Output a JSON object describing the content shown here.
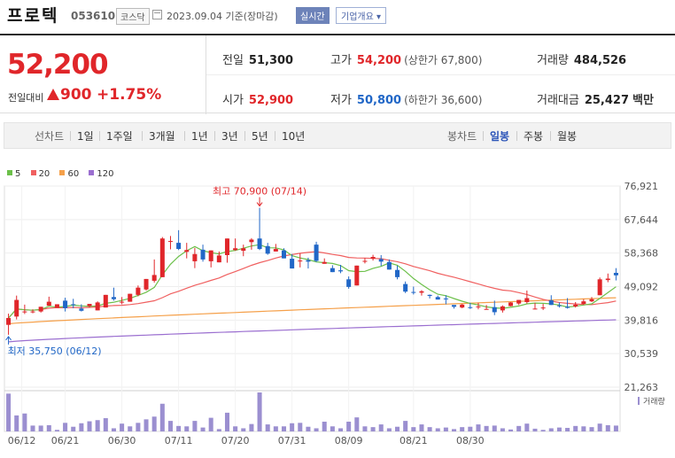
{
  "header": {
    "name": "프로텍",
    "code": "053610",
    "market": "코스닥",
    "date_text": "2023.09.04 기준(장마감)",
    "realtime_label": "실시간",
    "info_label": "기업개요 ▾"
  },
  "quote": {
    "price": "52,200",
    "change_label": "전일대비",
    "change": "900",
    "change_pct": "+1.75%",
    "cells": {
      "prev": {
        "label": "전일",
        "value": "51,300"
      },
      "high": {
        "label": "고가",
        "value": "54,200",
        "sub": "(상한가 67,800)"
      },
      "volume": {
        "label": "거래량",
        "value": "484,526"
      },
      "open": {
        "label": "시가",
        "value": "52,900"
      },
      "low": {
        "label": "저가",
        "value": "50,800",
        "sub": "(하한가 36,600)"
      },
      "amount": {
        "label": "거래대금",
        "value": "25,427",
        "unit": "백만"
      }
    }
  },
  "periods": {
    "label": "선차트",
    "items": [
      "1일",
      "1주일",
      "3개월",
      "1년",
      "3년",
      "5년",
      "10년"
    ]
  },
  "candles_tabs": {
    "label": "봉차트",
    "items": [
      "일봉",
      "주봉",
      "월봉"
    ],
    "selected": "일봉"
  },
  "colors": {
    "up": "#e0262a",
    "down": "#2167c7",
    "ma5": "#6cc04a",
    "ma20": "#f06060",
    "ma60": "#f5a04a",
    "ma120": "#9b6fd0",
    "volume": "#9b8fd0"
  },
  "chart_data": {
    "type": "candlestick",
    "legend": [
      "5",
      "20",
      "60",
      "120"
    ],
    "y_ticks": [
      "76,921",
      "67,644",
      "58,368",
      "49,092",
      "39,816",
      "30,539",
      "21,263"
    ],
    "ylim": [
      21263,
      76921
    ],
    "x_ticks": [
      "06/12",
      "06/21",
      "06/30",
      "07/11",
      "07/20",
      "07/31",
      "08/09",
      "08/21",
      "08/30"
    ],
    "annotations": {
      "high": "최고 70,900 (07/14)",
      "low": "최저 35,750 (06/12)"
    },
    "volume_label": "거래량",
    "ohlc": [
      [
        38500,
        41600,
        35750,
        40400
      ],
      [
        40800,
        46600,
        40000,
        45400
      ],
      [
        42200,
        44100,
        41500,
        42200
      ],
      [
        42200,
        42800,
        41700,
        42200
      ],
      [
        42200,
        43500,
        41900,
        43500
      ],
      [
        43800,
        46300,
        43800,
        44900
      ],
      [
        43200,
        44200,
        43200,
        44200
      ],
      [
        45200,
        46000,
        42200,
        43100
      ],
      [
        44200,
        45700,
        43100,
        44100
      ],
      [
        43000,
        44200,
        42200,
        42400
      ],
      [
        43700,
        44300,
        43300,
        44300
      ],
      [
        42500,
        45000,
        42500,
        44700
      ],
      [
        43300,
        46800,
        43300,
        46800
      ],
      [
        46200,
        48800,
        45200,
        45600
      ],
      [
        44900,
        46200,
        44200,
        44900
      ],
      [
        44900,
        47100,
        44900,
        47100
      ],
      [
        46800,
        49400,
        46400,
        48800
      ],
      [
        48300,
        51200,
        48000,
        51200
      ],
      [
        50700,
        56600,
        50200,
        52300
      ],
      [
        51700,
        62800,
        51700,
        62400
      ],
      [
        61700,
        63100,
        59400,
        61700
      ],
      [
        61200,
        64700,
        59200,
        59500
      ],
      [
        58700,
        61200,
        56900,
        59200
      ],
      [
        56100,
        59800,
        54200,
        58100
      ],
      [
        59300,
        60700,
        56000,
        56600
      ],
      [
        56100,
        59100,
        54400,
        59100
      ],
      [
        55800,
        58800,
        55800,
        57700
      ],
      [
        57800,
        62400,
        55700,
        62400
      ],
      [
        59200,
        62400,
        59000,
        59700
      ],
      [
        59000,
        60700,
        57500,
        59700
      ],
      [
        61400,
        62500,
        59300,
        62100
      ],
      [
        62400,
        70900,
        59200,
        59500
      ],
      [
        60300,
        61200,
        57900,
        58200
      ],
      [
        58800,
        60900,
        58800,
        59500
      ],
      [
        59100,
        59700,
        56900,
        56900
      ],
      [
        56800,
        58100,
        54100,
        54100
      ],
      [
        56100,
        58300,
        54400,
        56300
      ],
      [
        56400,
        57100,
        54100,
        56000
      ],
      [
        60700,
        61500,
        55900,
        56200
      ],
      [
        55400,
        56900,
        55400,
        55900
      ],
      [
        54200,
        55000,
        53100,
        53100
      ],
      [
        53600,
        55100,
        52800,
        53300
      ],
      [
        51100,
        51900,
        48500,
        49000
      ],
      [
        49400,
        54900,
        49400,
        54900
      ],
      [
        56000,
        57000,
        55500,
        56200
      ],
      [
        56800,
        57900,
        56300,
        57300
      ],
      [
        56700,
        57800,
        54800,
        56000
      ],
      [
        55900,
        56600,
        53800,
        53800
      ],
      [
        53700,
        54900,
        51100,
        51700
      ],
      [
        49800,
        50500,
        47300,
        47700
      ],
      [
        47600,
        49100,
        46900,
        47400
      ],
      [
        47400,
        48100,
        46600,
        47800
      ],
      [
        46800,
        46900,
        45800,
        46500
      ],
      [
        46200,
        46600,
        45500,
        45500
      ],
      [
        45800,
        46700,
        44200,
        45600
      ],
      [
        44000,
        44000,
        43000,
        43500
      ],
      [
        43300,
        44300,
        43100,
        44100
      ],
      [
        43400,
        44600,
        42900,
        43300
      ],
      [
        43600,
        44600,
        42800,
        43600
      ],
      [
        42800,
        44000,
        42800,
        42900
      ],
      [
        43400,
        45200,
        41200,
        42000
      ],
      [
        42500,
        43900,
        41900,
        43600
      ],
      [
        43700,
        44800,
        43600,
        44700
      ],
      [
        44400,
        45400,
        44000,
        45400
      ],
      [
        44800,
        48000,
        44400,
        45900
      ],
      [
        42800,
        44600,
        42800,
        43000
      ],
      [
        43200,
        44300,
        42600,
        43300
      ],
      [
        45300,
        46700,
        44000,
        44000
      ],
      [
        43900,
        44700,
        43300,
        43700
      ],
      [
        43500,
        45900,
        43000,
        43200
      ],
      [
        43600,
        44800,
        43300,
        44100
      ],
      [
        44300,
        45600,
        44000,
        45000
      ],
      [
        45000,
        46200,
        44800,
        45600
      ],
      [
        46700,
        51600,
        46700,
        51100
      ],
      [
        50900,
        52700,
        50300,
        51300
      ],
      [
        52900,
        54200,
        50800,
        52200
      ]
    ],
    "volume": [
      97,
      41,
      46,
      15,
      15,
      16,
      4,
      22,
      12,
      21,
      26,
      29,
      34,
      8,
      20,
      13,
      22,
      31,
      38,
      71,
      27,
      14,
      13,
      27,
      10,
      35,
      6,
      48,
      13,
      8,
      19,
      100,
      18,
      13,
      13,
      21,
      22,
      12,
      8,
      25,
      13,
      8,
      25,
      36,
      13,
      11,
      18,
      8,
      12,
      27,
      11,
      18,
      11,
      8,
      10,
      6,
      11,
      12,
      18,
      14,
      15,
      8,
      5,
      14,
      20,
      7,
      4,
      8,
      10,
      9,
      14,
      13,
      11,
      20,
      16,
      15
    ]
  }
}
